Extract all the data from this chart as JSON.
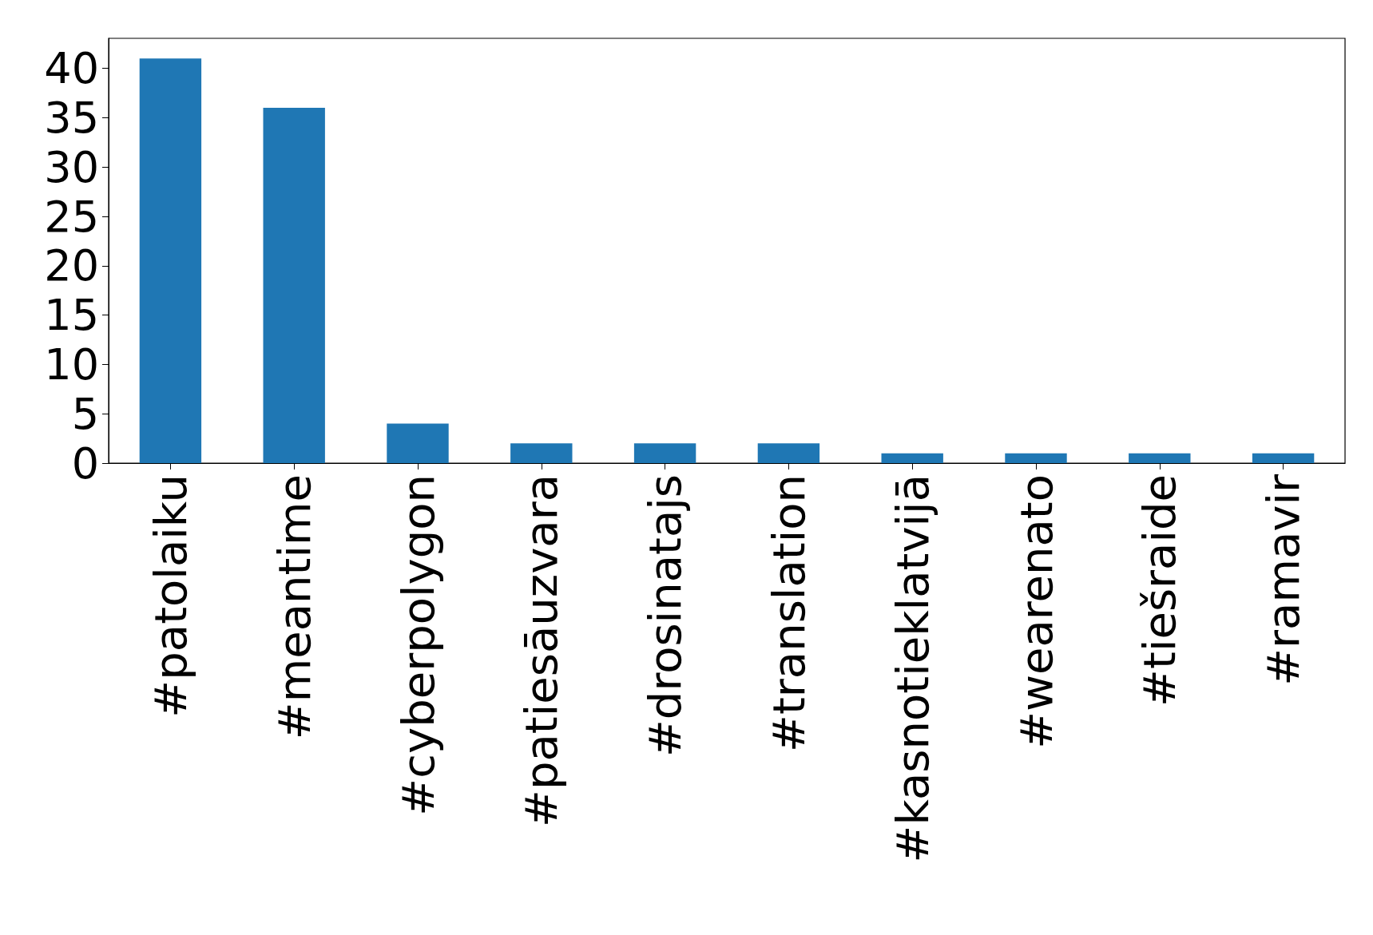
{
  "chart_data": {
    "type": "bar",
    "categories": [
      "#patolaiku",
      "#meantime",
      "#cyberpolygon",
      "#patiesāuzvara",
      "#drosinatajs",
      "#translation",
      "#kasnotieklatvijā",
      "#wearenato",
      "#tiešraide",
      "#ramavir"
    ],
    "values": [
      41,
      36,
      4,
      2,
      2,
      2,
      1,
      1,
      1,
      1
    ],
    "color": "#1f77b4",
    "ylim": [
      0,
      43.05
    ],
    "yticks": [
      0,
      5,
      10,
      15,
      20,
      25,
      30,
      35,
      40
    ],
    "grid": false
  }
}
